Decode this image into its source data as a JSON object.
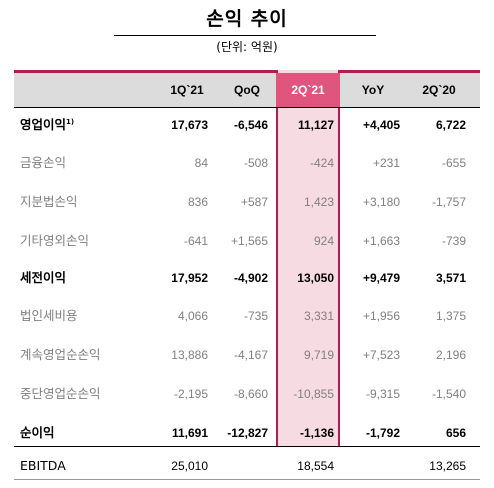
{
  "title": "손익 추이",
  "unit": "(단위: 억원)",
  "columns": [
    "",
    "1Q`21",
    "QoQ",
    "2Q`21",
    "YoY",
    "2Q`20"
  ],
  "rows": [
    {
      "label": "영업이익",
      "note": "1)",
      "style": "bold",
      "values": [
        "17,673",
        "-6,546",
        "11,127",
        "+4,405",
        "6,722"
      ]
    },
    {
      "label": "금융손익",
      "note": "",
      "style": "gray",
      "values": [
        "84",
        "-508",
        "-424",
        "+231",
        "-655"
      ]
    },
    {
      "label": "지분법손익",
      "note": "",
      "style": "gray",
      "values": [
        "836",
        "+587",
        "1,423",
        "+3,180",
        "-1,757"
      ]
    },
    {
      "label": "기타영외손익",
      "note": "",
      "style": "gray",
      "values": [
        "-641",
        "+1,565",
        "924",
        "+1,663",
        "-739"
      ]
    },
    {
      "label": "세전이익",
      "note": "",
      "style": "bold",
      "values": [
        "17,952",
        "-4,902",
        "13,050",
        "+9,479",
        "3,571"
      ]
    },
    {
      "label": "법인세비용",
      "note": "",
      "style": "gray",
      "values": [
        "4,066",
        "-735",
        "3,331",
        "+1,956",
        "1,375"
      ]
    },
    {
      "label": "계속영업순손익",
      "note": "",
      "style": "gray",
      "values": [
        "13,886",
        "-4,167",
        "9,719",
        "+7,523",
        "2,196"
      ]
    },
    {
      "label": "중단영업순손익",
      "note": "",
      "style": "gray",
      "values": [
        "-2,195",
        "-8,660",
        "-10,855",
        "-9,315",
        "-1,540"
      ]
    },
    {
      "label": "순이익",
      "note": "",
      "style": "bold",
      "values": [
        "11,691",
        "-12,827",
        "-1,136",
        "-1,792",
        "656"
      ]
    }
  ],
  "footer_row": {
    "label": "EBITDA",
    "values": [
      "25,010",
      "",
      "18,554",
      "",
      "13,265"
    ]
  },
  "colors": {
    "accent": "#b01e4f",
    "highlight_header": "#e0557e",
    "highlight_col": "#f6dbe2",
    "header_bg": "#dcdcdc"
  }
}
